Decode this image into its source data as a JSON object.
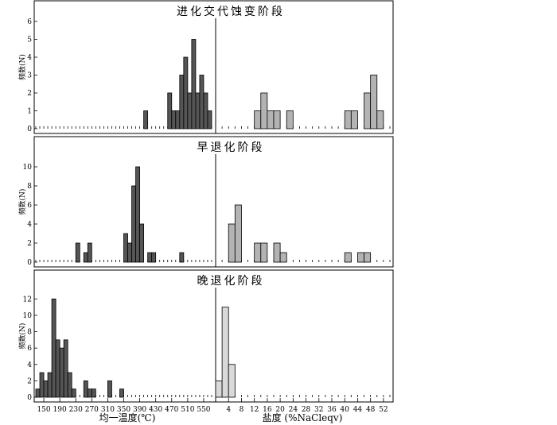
{
  "colors": {
    "temperature_bar": "#555555",
    "salinity_bar_early": "#b3b3b3",
    "salinity_bar_late": "#d9d9d9"
  },
  "chart_data": {
    "type": "bar",
    "temperature_axis": {
      "label": "均一温度(℃)",
      "bin_start": 130,
      "bin_width": 10,
      "bin_count": 44,
      "tick_labels": [
        "150",
        "190",
        "230",
        "270",
        "310",
        "350",
        "390",
        "430",
        "470",
        "510",
        "550"
      ]
    },
    "salinity_axis": {
      "label": "盐度 (%NaCleqv)",
      "bin_start": 0,
      "bin_width": 2,
      "bin_count": 27,
      "tick_labels": [
        "4",
        "8",
        "12",
        "16",
        "20",
        "24",
        "28",
        "32",
        "36",
        "40",
        "44",
        "48",
        "52"
      ]
    },
    "panels": [
      {
        "title": "进化交代蚀变阶段",
        "ylabel": "频数(N)",
        "ylim": [
          0,
          6
        ],
        "y_ticks": [
          "0",
          "1",
          "2",
          "3",
          "4",
          "5",
          "6"
        ],
        "temperature_counts": [
          0,
          0,
          0,
          0,
          0,
          0,
          0,
          0,
          0,
          0,
          0,
          0,
          0,
          0,
          0,
          0,
          0,
          0,
          0,
          0,
          0,
          0,
          0,
          0,
          0,
          0,
          0,
          1,
          0,
          0,
          0,
          0,
          0,
          2,
          1,
          1,
          3,
          4,
          2,
          5,
          2,
          3,
          2,
          1
        ],
        "salinity_counts": [
          0,
          0,
          0,
          0,
          0,
          0,
          1,
          2,
          1,
          1,
          0,
          1,
          0,
          0,
          0,
          0,
          0,
          0,
          0,
          0,
          1,
          1,
          0,
          2,
          3,
          1,
          0
        ]
      },
      {
        "title": "早退化阶段",
        "ylabel": "频数(N)",
        "ylim": [
          0,
          11
        ],
        "y_ticks": [
          "0",
          "2",
          "4",
          "6",
          "8",
          "10"
        ],
        "temperature_counts": [
          0,
          0,
          0,
          0,
          0,
          0,
          0,
          0,
          0,
          0,
          2,
          0,
          1,
          2,
          0,
          0,
          0,
          0,
          0,
          0,
          0,
          0,
          3,
          2,
          8,
          10,
          4,
          0,
          1,
          1,
          0,
          0,
          0,
          0,
          0,
          0,
          1,
          0,
          0,
          0,
          0,
          0,
          0,
          0
        ],
        "salinity_counts": [
          0,
          0,
          4,
          6,
          0,
          0,
          2,
          2,
          0,
          2,
          1,
          0,
          0,
          0,
          0,
          0,
          0,
          0,
          0,
          0,
          1,
          0,
          1,
          1,
          0,
          0,
          0
        ]
      },
      {
        "title": "晚退化阶段",
        "ylabel": "频数(N)",
        "ylim": [
          0,
          13
        ],
        "y_ticks": [
          "0",
          "2",
          "4",
          "6",
          "8",
          "10",
          "12"
        ],
        "temperature_counts": [
          1,
          3,
          2,
          3,
          12,
          7,
          6,
          7,
          3,
          1,
          0,
          0,
          2,
          1,
          1,
          0,
          0,
          0,
          2,
          0,
          0,
          1,
          0,
          0,
          0,
          0,
          0,
          0,
          0,
          0,
          0,
          0,
          0,
          0,
          0,
          0,
          0,
          0,
          0,
          0,
          0,
          0,
          0,
          0
        ],
        "salinity_counts": [
          2,
          11,
          4,
          0,
          0,
          0,
          0,
          0,
          0,
          0,
          0,
          0,
          0,
          0,
          0,
          0,
          0,
          0,
          0,
          0,
          0,
          0,
          0,
          0,
          0,
          0,
          0
        ]
      }
    ]
  }
}
